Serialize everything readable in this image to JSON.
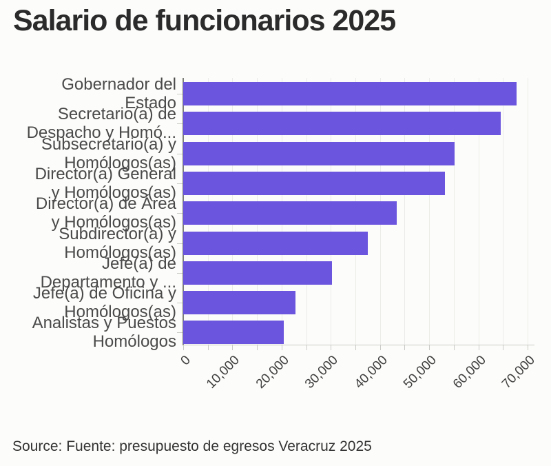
{
  "page": {
    "title": "Salario de funcionarios 2025",
    "source": "Source: Fuente: presupuesto de egresos Veracruz 2025"
  },
  "colors": {
    "bar": "#6B54DE",
    "page_background": "#FCFCFA",
    "grid": "#EBEBE8",
    "y_axis_line": "#7D7D7A",
    "x_axis_line": "#C9C9C6",
    "tick_mark": "#C9C9C6",
    "title_text": "#2B2B2B",
    "category_text": "#4A4A4A",
    "tick_text": "#3F3F3F",
    "source_text": "#333333"
  },
  "chart_data": {
    "type": "bar",
    "orientation": "horizontal",
    "title": "Salario de funcionarios 2025",
    "xlabel": "",
    "ylabel": "",
    "xlim": [
      0,
      70000
    ],
    "xticks": [
      0,
      10000,
      20000,
      30000,
      40000,
      50000,
      60000,
      70000
    ],
    "xtick_labels": [
      "0",
      "10,000",
      "20,000",
      "30,000",
      "40,000",
      "50,000",
      "60,000",
      "70,000"
    ],
    "grid_interval": 5000,
    "grid": true,
    "legend": false,
    "categories": [
      "Gobernador del Estado",
      "Secretario(a) de Despacho y Homó...",
      "Subsecretario(a) y Homólogos(as)",
      "Director(a) General y Homólogos(as)",
      "Director(a) de Área y Homólogos(as)",
      "Subdirector(a) y Homólogos(as)",
      "Jefe(a) de Departamento y ...",
      "Jefe(a) de Oficina y Homólogos(as)",
      "Analistas y Puestos Homólogos"
    ],
    "category_display_lines": [
      [
        "Gobernador del",
        "Estado"
      ],
      [
        "Secretario(a) de",
        "Despacho y Homó..."
      ],
      [
        "Subsecretario(a) y",
        "Homólogos(as)"
      ],
      [
        "Director(a) General",
        "y Homólogos(as)"
      ],
      [
        "Director(a) de Área",
        "y Homólogos(as)"
      ],
      [
        "Subdirector(a) y",
        "Homólogos(as)"
      ],
      [
        "Jefe(a) de",
        "Departamento y ..."
      ],
      [
        "Jefe(a) de Oficina y",
        "Homólogos(as)"
      ],
      [
        "Analistas y Puestos",
        "Homólogos"
      ]
    ],
    "values": [
      67700,
      64600,
      55200,
      53200,
      43400,
      37500,
      30200,
      22800,
      20500
    ],
    "source": "Source: Fuente: presupuesto de egresos Veracruz 2025"
  }
}
